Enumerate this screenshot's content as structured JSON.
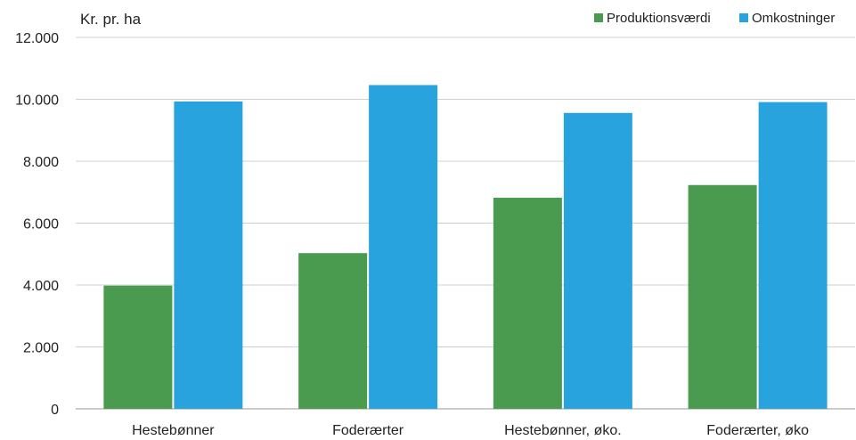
{
  "chart_data": {
    "type": "bar",
    "unit_label": "Kr. pr. ha",
    "categories": [
      "Hestebønner",
      "Foderærter",
      "Hestebønner, øko.",
      "Foderærter, øko"
    ],
    "series": [
      {
        "name": "Produktionsværdi",
        "color": "#4a9a4f",
        "values": [
          3980,
          5030,
          6820,
          7230
        ]
      },
      {
        "name": "Omkostninger",
        "color": "#29a3de",
        "values": [
          9930,
          10460,
          9560,
          9910
        ]
      }
    ],
    "ylim": [
      0,
      12000
    ],
    "yticks": [
      {
        "value": 0,
        "label": "0"
      },
      {
        "value": 2000,
        "label": "2.000"
      },
      {
        "value": 4000,
        "label": "4.000"
      },
      {
        "value": 6000,
        "label": "6.000"
      },
      {
        "value": 8000,
        "label": "8.000"
      },
      {
        "value": 10000,
        "label": "10.000"
      },
      {
        "value": 12000,
        "label": "12.000"
      }
    ],
    "grid": true,
    "legend_position": "top-right"
  }
}
